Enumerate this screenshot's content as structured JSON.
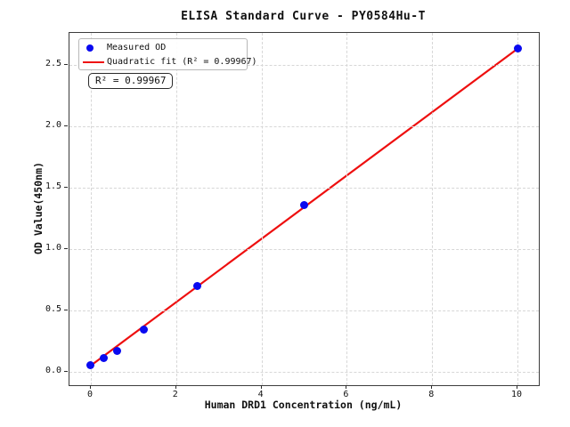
{
  "chart_data": {
    "type": "scatter",
    "title": "ELISA Standard Curve - PY0584Hu-T",
    "xlabel": "Human DRD1 Concentration (ng/mL)",
    "ylabel": "OD Value(450nm)",
    "xlim": [
      -0.5,
      10.5
    ],
    "ylim": [
      -0.11,
      2.76
    ],
    "x_ticks": [
      0,
      2,
      4,
      6,
      8,
      10
    ],
    "x_tick_labels": [
      "0",
      "2",
      "4",
      "6",
      "8",
      "10"
    ],
    "y_ticks": [
      0.0,
      0.5,
      1.0,
      1.5,
      2.0,
      2.5
    ],
    "y_tick_labels": [
      "0.0",
      "0.5",
      "1.0",
      "1.5",
      "2.0",
      "2.5"
    ],
    "grid": "dashed both axes at ticks",
    "legend_position": "upper left",
    "series": [
      {
        "name": "Measured OD",
        "kind": "scatter",
        "marker": "circle",
        "color": "#0a0af0",
        "x": [
          0,
          0.312,
          0.625,
          1.25,
          2.5,
          5,
          10
        ],
        "y": [
          0.05,
          0.11,
          0.17,
          0.34,
          0.7,
          1.36,
          2.63
        ]
      },
      {
        "name": "Quadratic fit (R² = 0.99967)",
        "kind": "line",
        "color": "#ee0f0f",
        "x": [
          0,
          10
        ],
        "y": [
          0.05,
          2.63
        ]
      }
    ],
    "r_squared": 0.99967
  },
  "legend": {
    "items": [
      {
        "label": "Measured OD",
        "marker": "dot",
        "color": "#0a0af0"
      },
      {
        "label": "Quadratic fit (R² = 0.99967)",
        "marker": "line",
        "color": "#ee0f0f"
      }
    ]
  },
  "annotation": {
    "text": "R² = 0.99967"
  },
  "colors": {
    "marker_blue": "#0a0af0",
    "fit_red": "#ee0f0f",
    "grid_gray": "#d7d7d7",
    "spine": "#3c3c3c",
    "background": "#ffffff"
  }
}
